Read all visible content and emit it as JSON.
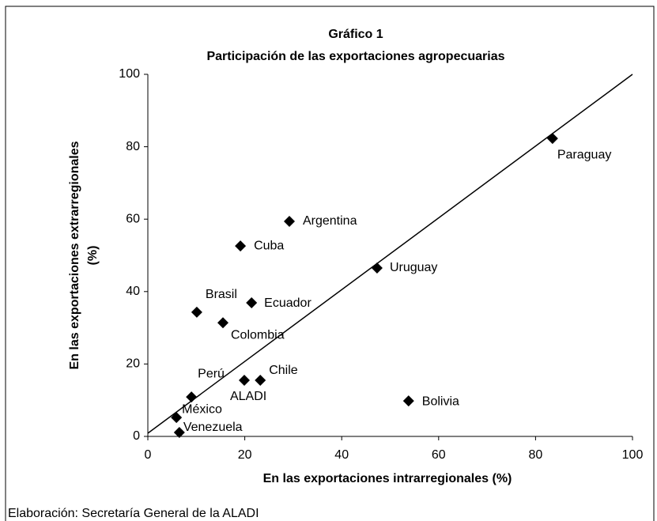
{
  "chart_data": {
    "type": "scatter",
    "title": "Gráfico 1",
    "subtitle": "Participación de las exportaciones agropecuarias",
    "xlabel": "En las exportaciones intrarregionales (%)",
    "ylabel": [
      "En las exportaciones extrarregionales",
      "(%)"
    ],
    "footer": "Elaboración: Secretaría General de la ALADI",
    "color": "#000000",
    "points": [
      {
        "name": "Paraguay",
        "x": 83.5,
        "y": 82.3
      },
      {
        "name": "Argentina",
        "x": 29.2,
        "y": 59.4
      },
      {
        "name": "Cuba",
        "x": 19.1,
        "y": 52.6
      },
      {
        "name": "Uruguay",
        "x": 47.3,
        "y": 46.5
      },
      {
        "name": "Ecuador",
        "x": 21.4,
        "y": 36.9
      },
      {
        "name": "Brasil",
        "x": 10.1,
        "y": 34.3
      },
      {
        "name": "Colombia",
        "x": 15.5,
        "y": 31.4
      },
      {
        "name": "Chile",
        "x": 23.2,
        "y": 15.5
      },
      {
        "name": "Perú",
        "x": 9.0,
        "y": 10.9
      },
      {
        "name": "ALADI",
        "x": 19.9,
        "y": 15.5
      },
      {
        "name": "México",
        "x": 5.9,
        "y": 5.2
      },
      {
        "name": "Venezuela",
        "x": 6.5,
        "y": 1.1
      },
      {
        "name": "Bolivia",
        "x": 53.8,
        "y": 9.8
      }
    ],
    "xlim": [
      0,
      100
    ],
    "xticks": [
      0,
      20,
      40,
      60,
      80,
      100
    ],
    "ylim": [
      0,
      100
    ],
    "yticks": [
      0,
      20,
      40,
      60,
      80,
      100
    ]
  }
}
